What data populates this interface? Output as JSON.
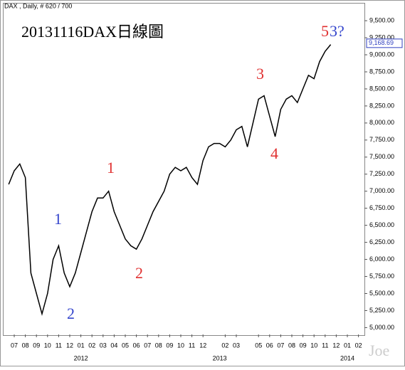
{
  "header": "DAX , Daily, # 620 / 700",
  "chart_data": {
    "type": "line",
    "title": "20131116DAX日線圖",
    "categories": [
      null,
      "07",
      null,
      "08",
      null,
      "09",
      null,
      "10",
      null,
      "11",
      null,
      "12",
      null,
      "01",
      null,
      "02",
      null,
      "03",
      null,
      "04",
      null,
      "05",
      null,
      "06",
      null,
      "07",
      null,
      "08",
      null,
      "09",
      null,
      "10",
      null,
      "11",
      null,
      "12",
      null,
      null,
      null,
      "02",
      null,
      "03",
      null,
      null,
      null,
      "05",
      null,
      "06",
      null,
      "07",
      null,
      "08",
      null,
      "09",
      null,
      "10",
      null,
      "11",
      null,
      "12",
      null,
      "01",
      null,
      "02"
    ],
    "values": [
      7100,
      7300,
      7400,
      7200,
      5800,
      5500,
      5200,
      5500,
      6000,
      6200,
      5800,
      5600,
      5800,
      6100,
      6400,
      6700,
      6900,
      6900,
      7000,
      6700,
      6500,
      6300,
      6200,
      6150,
      6300,
      6500,
      6700,
      6850,
      7000,
      7250,
      7350,
      7300,
      7350,
      7200,
      7100,
      7450,
      7650,
      7700,
      7700,
      7650,
      7750,
      7900,
      7950,
      7650,
      8000,
      8350,
      8400,
      8100,
      7800,
      8200,
      8350,
      8400,
      8300,
      8500,
      8700,
      8650,
      8900,
      9050,
      9150,
      null,
      null,
      null,
      null,
      null
    ],
    "color": "#000000",
    "year_labels": [
      {
        "value": 13,
        "label": "2012"
      },
      {
        "value": 38,
        "label": "2013"
      },
      {
        "value": 61,
        "label": "2014"
      }
    ],
    "ylim": [
      4900,
      9720
    ],
    "yticks": [
      {
        "value": 5000,
        "label": "5,000.00"
      },
      {
        "value": 5250,
        "label": "5,250.00"
      },
      {
        "value": 5500,
        "label": "5,500.00"
      },
      {
        "value": 5750,
        "label": "5,750.00"
      },
      {
        "value": 6000,
        "label": "6,000.00"
      },
      {
        "value": 6250,
        "label": "6,250.00"
      },
      {
        "value": 6500,
        "label": "6,500.00"
      },
      {
        "value": 6750,
        "label": "6,750.00"
      },
      {
        "value": 7000,
        "label": "7,000.00"
      },
      {
        "value": 7250,
        "label": "7,250.00"
      },
      {
        "value": 7500,
        "label": "7,500.00"
      },
      {
        "value": 7750,
        "label": "7,750.00"
      },
      {
        "value": 8000,
        "label": "8,000.00"
      },
      {
        "value": 8250,
        "label": "8,250.00"
      },
      {
        "value": 8500,
        "label": "8,500.00"
      },
      {
        "value": 8750,
        "label": "8,750.00"
      },
      {
        "value": 9000,
        "label": "9,000.00"
      },
      {
        "value": 9250,
        "label": "9,250.00"
      },
      {
        "value": 9500,
        "label": "9,500.00"
      }
    ],
    "last_price": 9168.69,
    "last_price_label": "9,168.69",
    "annotations": [
      "1",
      "2",
      "1",
      "2",
      "3",
      "4",
      "5",
      "3?"
    ],
    "watermark": "Joe"
  }
}
